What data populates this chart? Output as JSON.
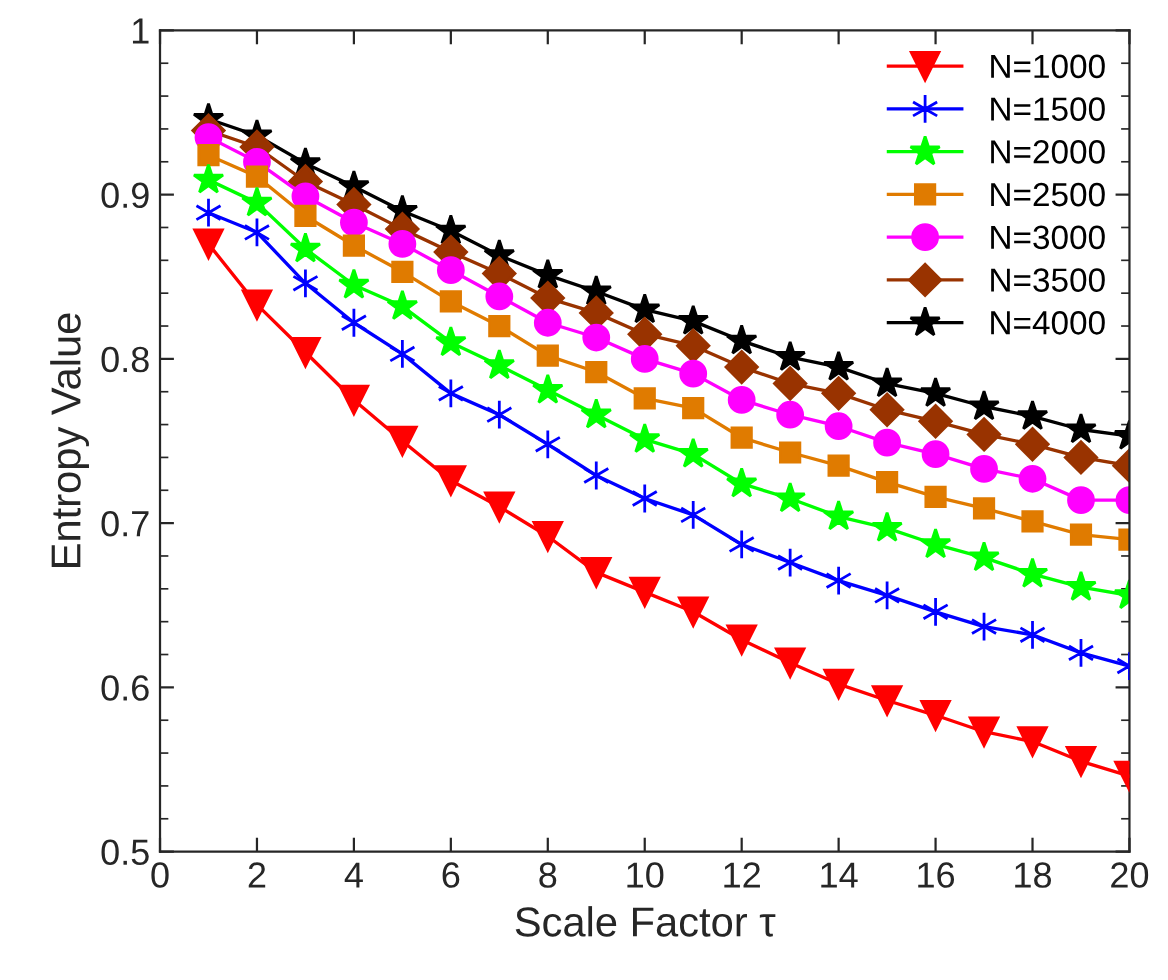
{
  "chart_data": {
    "type": "line",
    "xlabel": "Scale Factor τ",
    "ylabel": "Entropy Value",
    "x": [
      1,
      2,
      3,
      4,
      5,
      6,
      7,
      8,
      9,
      10,
      11,
      12,
      13,
      14,
      15,
      16,
      17,
      18,
      19,
      20
    ],
    "xlim": [
      0,
      20
    ],
    "xticks": [
      0,
      2,
      4,
      6,
      8,
      10,
      12,
      14,
      16,
      18,
      20
    ],
    "ylim": [
      0.5,
      1
    ],
    "yticks": [
      0.5,
      0.6,
      0.7,
      0.8,
      0.9,
      {
        "value": 1,
        "label": "1"
      }
    ],
    "grid": false,
    "legend": "top right",
    "series": [
      {
        "name": "N=1000",
        "color": "#ff0000",
        "marker": "triangle",
        "values": [
          0.87,
          0.833,
          0.804,
          0.775,
          0.75,
          0.726,
          0.71,
          0.692,
          0.67,
          0.658,
          0.646,
          0.629,
          0.615,
          0.602,
          0.592,
          0.583,
          0.573,
          0.567,
          0.555,
          0.546
        ]
      },
      {
        "name": "N=1500",
        "color": "#0000ff",
        "marker": "cross",
        "values": [
          0.889,
          0.877,
          0.846,
          0.822,
          0.803,
          0.779,
          0.766,
          0.748,
          0.729,
          0.715,
          0.705,
          0.687,
          0.676,
          0.665,
          0.656,
          0.646,
          0.637,
          0.632,
          0.621,
          0.613
        ]
      },
      {
        "name": "N=2000",
        "color": "#00ff00",
        "marker": "star",
        "values": [
          0.909,
          0.895,
          0.867,
          0.845,
          0.832,
          0.81,
          0.796,
          0.781,
          0.766,
          0.751,
          0.742,
          0.724,
          0.715,
          0.704,
          0.697,
          0.687,
          0.679,
          0.669,
          0.661,
          0.656
        ]
      },
      {
        "name": "N=2500",
        "color": "#e07b00",
        "marker": "square",
        "values": [
          0.924,
          0.911,
          0.887,
          0.869,
          0.853,
          0.835,
          0.82,
          0.802,
          0.792,
          0.776,
          0.77,
          0.752,
          0.743,
          0.735,
          0.725,
          0.716,
          0.709,
          0.701,
          0.693,
          0.69
        ]
      },
      {
        "name": "N=3000",
        "color": "#ff00ff",
        "marker": "circle",
        "values": [
          0.935,
          0.92,
          0.899,
          0.883,
          0.87,
          0.854,
          0.838,
          0.822,
          0.813,
          0.8,
          0.791,
          0.775,
          0.766,
          0.759,
          0.749,
          0.742,
          0.733,
          0.727,
          0.714,
          0.714
        ]
      },
      {
        "name": "N=3500",
        "color": "#993300",
        "marker": "diamond",
        "values": [
          0.939,
          0.929,
          0.908,
          0.894,
          0.879,
          0.865,
          0.852,
          0.837,
          0.828,
          0.815,
          0.808,
          0.795,
          0.785,
          0.779,
          0.769,
          0.762,
          0.754,
          0.748,
          0.74,
          0.735
        ]
      },
      {
        "name": "N=4000",
        "color": "#000000",
        "marker": "star",
        "values": [
          0.946,
          0.936,
          0.919,
          0.905,
          0.89,
          0.878,
          0.863,
          0.851,
          0.841,
          0.83,
          0.823,
          0.811,
          0.801,
          0.795,
          0.785,
          0.779,
          0.771,
          0.765,
          0.757,
          0.753
        ]
      }
    ]
  }
}
